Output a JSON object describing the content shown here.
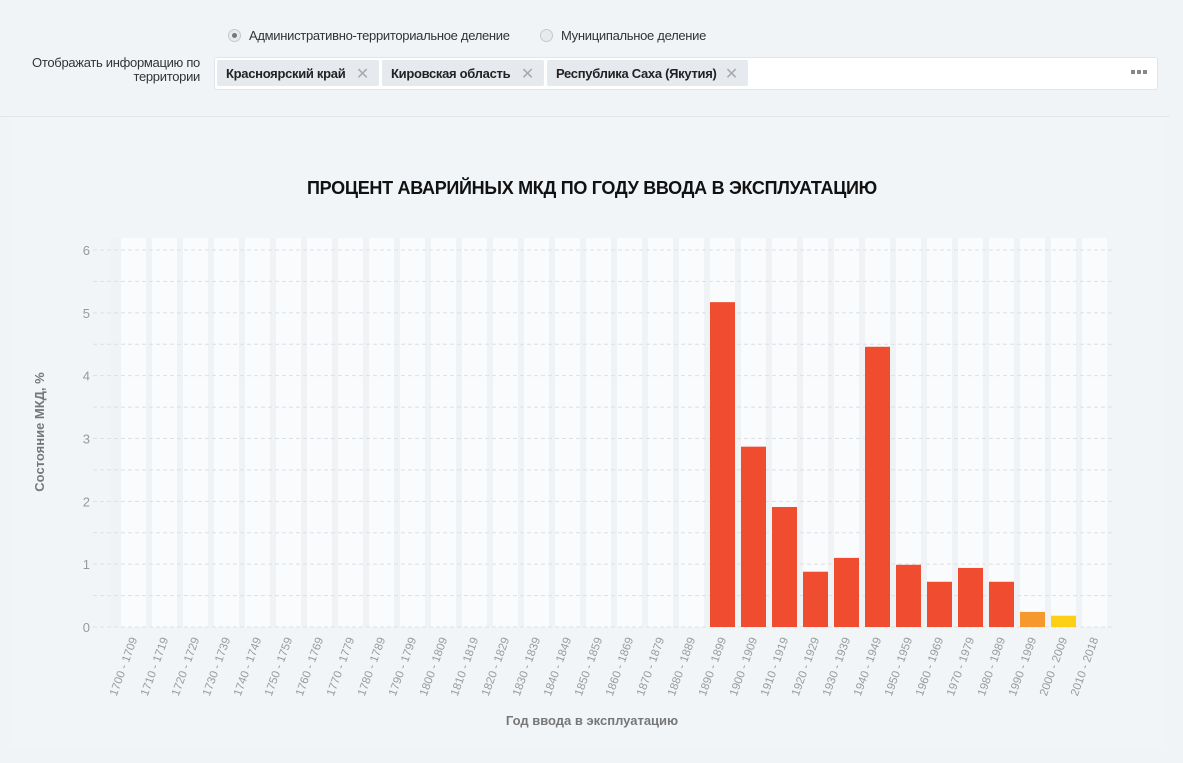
{
  "filters": {
    "radio_options": [
      {
        "label": "Административно-территориальное деление",
        "selected": true
      },
      {
        "label": "Муниципальное деление",
        "selected": false
      }
    ],
    "territory_label": "Отображать информацию по территории",
    "tags": [
      "Красноярский край",
      "Кировская область",
      "Республика Саха (Якутия)"
    ],
    "more_icon": "ellipsis-icon",
    "remove_icon": "close-icon"
  },
  "chart_data": {
    "type": "bar",
    "title": "ПРОЦЕНТ АВАРИЙНЫХ МКД ПО ГОДУ ВВОДА В ЭКСПЛУАТАЦИЮ",
    "xlabel": "Год ввода в эксплуатацию",
    "ylabel": "Состояние МКД, %",
    "ylim": [
      0,
      6
    ],
    "yticks": [
      0,
      1,
      2,
      3,
      4,
      5,
      6
    ],
    "grid": true,
    "categories": [
      "1700 - 1709",
      "1710 - 1719",
      "1720 - 1729",
      "1730 - 1739",
      "1740 - 1749",
      "1750 - 1759",
      "1760 - 1769",
      "1770 - 1779",
      "1780 - 1789",
      "1790 - 1799",
      "1800 - 1809",
      "1810 - 1819",
      "1820 - 1829",
      "1830 - 1839",
      "1840 - 1849",
      "1850 - 1859",
      "1860 - 1869",
      "1870 - 1879",
      "1880 - 1889",
      "1890 - 1899",
      "1900 - 1909",
      "1910 - 1919",
      "1920 - 1929",
      "1930 - 1939",
      "1940 - 1949",
      "1950 - 1959",
      "1960 - 1969",
      "1970 - 1979",
      "1980 - 1989",
      "1990 - 1999",
      "2000 - 2009",
      "2010 - 2018"
    ],
    "values": [
      0,
      0,
      0,
      0,
      0,
      0,
      0,
      0,
      0,
      0,
      0,
      0,
      0,
      0,
      0,
      0,
      0,
      0,
      0,
      5.17,
      2.87,
      1.91,
      0.88,
      1.1,
      4.46,
      0.99,
      0.72,
      0.94,
      0.72,
      0.24,
      0.18,
      0
    ],
    "colors": {
      "default": "#f04c30",
      "1990 - 1999": "#f5982e",
      "2000 - 2009": "#fdd017"
    }
  }
}
